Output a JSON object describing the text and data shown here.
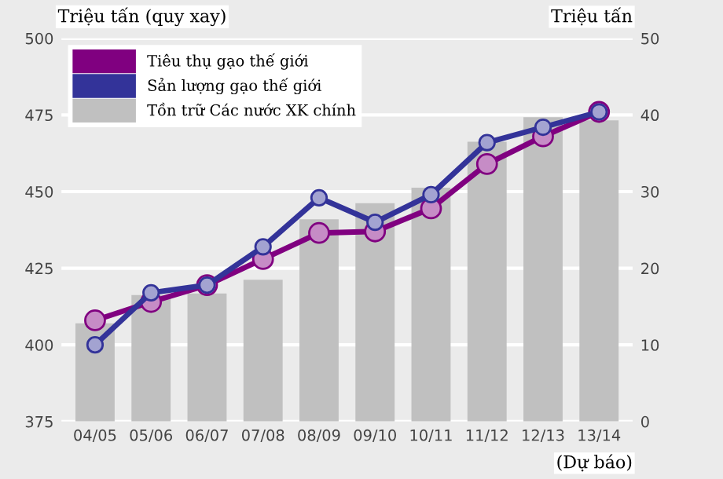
{
  "chart_data": {
    "type": "line",
    "ylabel": "Triệu tấn (quy xay)",
    "y2label": "Triệu tấn",
    "categories": [
      "04/05",
      "05/06",
      "06/07",
      "07/08",
      "08/09",
      "09/10",
      "10/11",
      "11/12",
      "12/13",
      "13/14"
    ],
    "series": [
      {
        "name": "Tiêu thụ gạo thế giới",
        "color": "#800080",
        "values": [
          408,
          414,
          419.5,
          428,
          436.5,
          437,
          444.5,
          459,
          468,
          476
        ]
      },
      {
        "name": "Sản lượng gạo thế giới",
        "color": "#333399",
        "values": [
          400,
          417,
          419.5,
          432,
          448,
          440,
          449,
          466,
          471,
          476
        ]
      },
      {
        "name": "Tồn trữ Các nước XK chính",
        "type": "bar",
        "axis": "y2",
        "color": "#c0c0c0",
        "values": [
          12.8,
          16.5,
          16.7,
          18.5,
          26.4,
          28.5,
          30.5,
          36.5,
          39.7,
          39.3
        ]
      }
    ],
    "ylim": [
      375,
      500
    ],
    "yticks": [
      375,
      400,
      425,
      450,
      475,
      500
    ],
    "y2lim": [
      0,
      50
    ],
    "y2ticks": [
      0,
      10,
      20,
      30,
      40,
      50
    ],
    "grid": "y",
    "legend": "top left",
    "marker": "circle",
    "annotations": [
      "(Dự báo)"
    ]
  }
}
